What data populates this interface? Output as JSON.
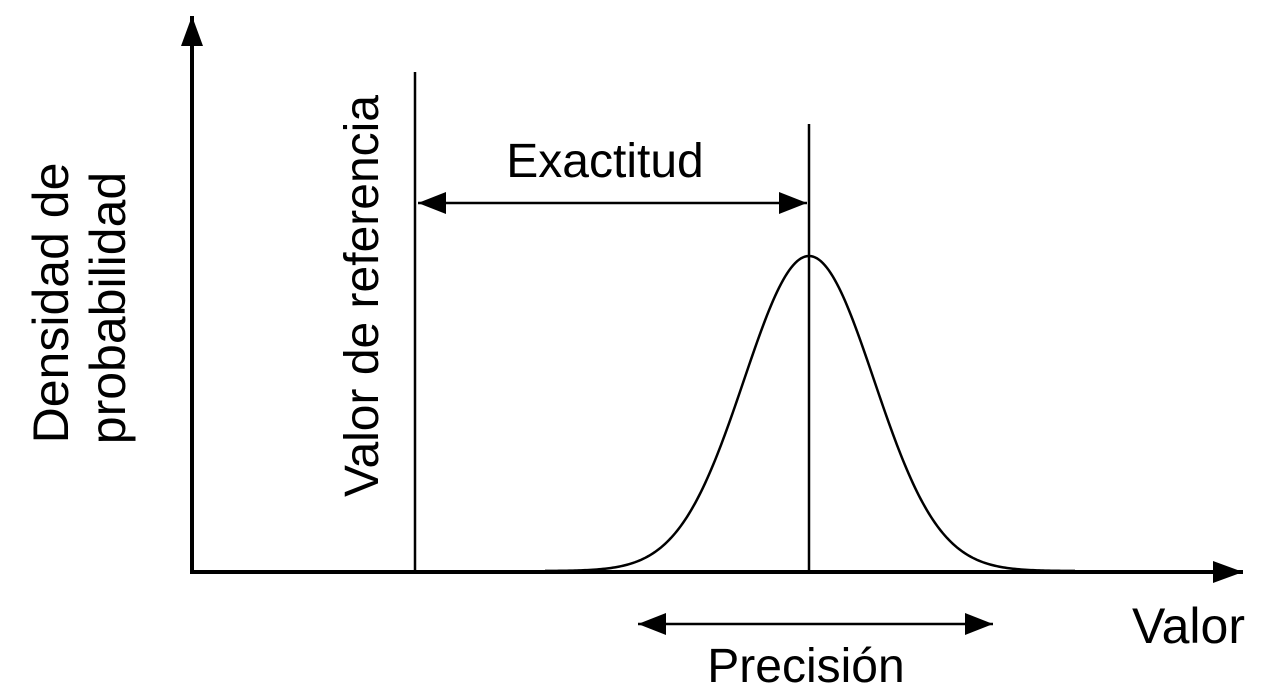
{
  "diagram": {
    "y_axis_label_line1": "Densidad de",
    "y_axis_label_line2": "probabilidad",
    "x_axis_label": "Valor",
    "reference_label": "Valor de referencia",
    "accuracy_label": "Exactitud",
    "precision_label": "Precisión",
    "colors": {
      "line": "#000000",
      "background": "#ffffff"
    }
  }
}
